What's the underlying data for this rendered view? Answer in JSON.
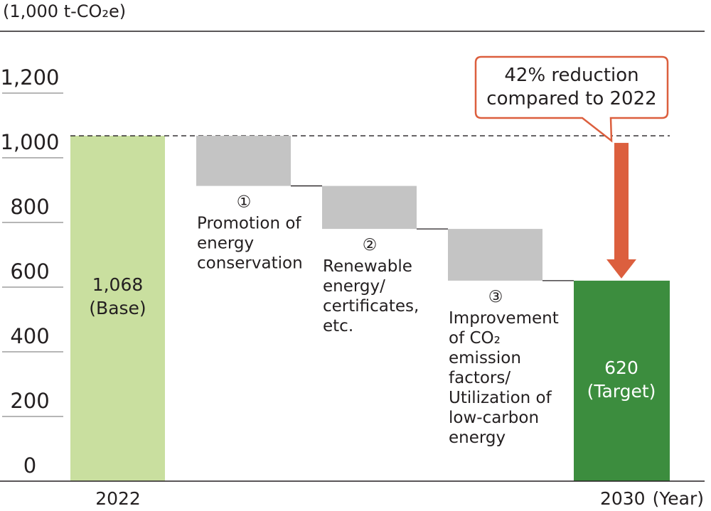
{
  "chart_data": {
    "type": "waterfall",
    "unit_label": "(1,000 t-CO₂e)",
    "x_axis_suffix": "(Year)",
    "ylim": [
      0,
      1200
    ],
    "y_ticks": [
      {
        "value": 0,
        "label": "0"
      },
      {
        "value": 200,
        "label": "200"
      },
      {
        "value": 400,
        "label": "400"
      },
      {
        "value": 600,
        "label": "600"
      },
      {
        "value": 800,
        "label": "800"
      },
      {
        "value": 1000,
        "label": "1,000"
      },
      {
        "value": 1200,
        "label": "1,200"
      }
    ],
    "base": {
      "year": "2022",
      "value": 1068,
      "value_label": "1,068",
      "sub_label": "(Base)",
      "color": "#c9df9f"
    },
    "target": {
      "year": "2030",
      "value": 620,
      "value_label": "620",
      "sub_label": "(Target)",
      "color": "#3c8d3e"
    },
    "reductions": [
      {
        "marker": "①",
        "start": 1068,
        "end": 913,
        "color": "#c4c4c4",
        "lines": [
          "Promotion of",
          "energy",
          "conservation"
        ]
      },
      {
        "marker": "②",
        "start": 913,
        "end": 780,
        "color": "#c4c4c4",
        "lines": [
          "Renewable",
          "energy/",
          "certificates,",
          "etc."
        ]
      },
      {
        "marker": "③",
        "start": 780,
        "end": 620,
        "color": "#c4c4c4",
        "lines": [
          "Improvement",
          "of CO₂",
          "emission",
          "factors/",
          "Utilization of",
          "low-carbon",
          "energy"
        ]
      }
    ],
    "callout": {
      "lines": [
        "42% reduction",
        "compared to 2022"
      ],
      "color": "#dc5f3e"
    },
    "grid": false
  }
}
